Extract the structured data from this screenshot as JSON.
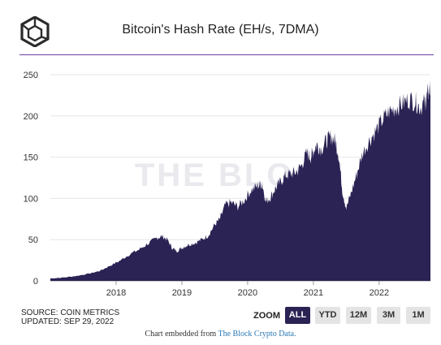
{
  "header": {
    "title": "Bitcoin's Hash Rate (EH/s, 7DMA)",
    "logo_icon": "the-block-cube-logo"
  },
  "watermark": "THE BLOCK",
  "source": {
    "line1": "SOURCE: COIN METRICS",
    "line2": "UPDATED: SEP 29, 2022"
  },
  "zoom": {
    "label": "ZOOM",
    "buttons": [
      {
        "label": "ALL",
        "active": true
      },
      {
        "label": "YTD",
        "active": false
      },
      {
        "label": "12M",
        "active": false
      },
      {
        "label": "3M",
        "active": false
      },
      {
        "label": "1M",
        "active": false
      }
    ]
  },
  "footer": {
    "prefix": "Chart embedded from ",
    "link": "The Block Crypto Data."
  },
  "colors": {
    "area": "#2a2354",
    "accent_rule": "#6b3fa0",
    "link": "#2a78b4",
    "grid": "#e6e6e6"
  },
  "chart_data": {
    "type": "area",
    "title": "Bitcoin's Hash Rate (EH/s, 7DMA)",
    "xlabel": "",
    "ylabel": "",
    "ylim": [
      0,
      250
    ],
    "yticks": [
      0,
      50,
      100,
      150,
      200,
      250
    ],
    "xlim": [
      2017.0,
      2022.78
    ],
    "xticks": [
      {
        "value": 2018,
        "label": "2018"
      },
      {
        "value": 2019,
        "label": "2019"
      },
      {
        "value": 2020,
        "label": "2020"
      },
      {
        "value": 2021,
        "label": "2021"
      },
      {
        "value": 2022,
        "label": "2022"
      }
    ],
    "grid": "horizontal",
    "series": [
      {
        "x": [
          2017.0,
          2017.2,
          2017.4,
          2017.6,
          2017.75,
          2017.9,
          2018.05,
          2018.2,
          2018.35,
          2018.5,
          2018.62,
          2018.7,
          2018.78,
          2018.85,
          2018.92,
          2019.0,
          2019.1,
          2019.2,
          2019.3,
          2019.4,
          2019.5,
          2019.58,
          2019.66,
          2019.75,
          2019.85,
          2019.95,
          2020.05,
          2020.15,
          2020.22,
          2020.28,
          2020.35,
          2020.42,
          2020.5,
          2020.58,
          2020.66,
          2020.74,
          2020.82,
          2020.9,
          2020.96,
          2021.0,
          2021.05,
          2021.12,
          2021.2,
          2021.27,
          2021.33,
          2021.38,
          2021.44,
          2021.5,
          2021.58,
          2021.66,
          2021.75,
          2021.85,
          2021.95,
          2022.05,
          2022.15,
          2022.25,
          2022.35,
          2022.45,
          2022.55,
          2022.62,
          2022.68,
          2022.72,
          2022.75,
          2022.78
        ],
        "values": [
          3,
          4,
          6,
          9,
          12,
          18,
          24,
          32,
          38,
          46,
          52,
          54,
          50,
          40,
          36,
          40,
          44,
          46,
          50,
          55,
          68,
          75,
          92,
          95,
          90,
          98,
          110,
          115,
          118,
          96,
          102,
          112,
          120,
          128,
          130,
          132,
          140,
          155,
          150,
          158,
          165,
          160,
          170,
          175,
          170,
          155,
          110,
          88,
          108,
          130,
          155,
          170,
          182,
          195,
          205,
          210,
          215,
          220,
          218,
          210,
          215,
          222,
          230,
          232
        ]
      }
    ]
  }
}
